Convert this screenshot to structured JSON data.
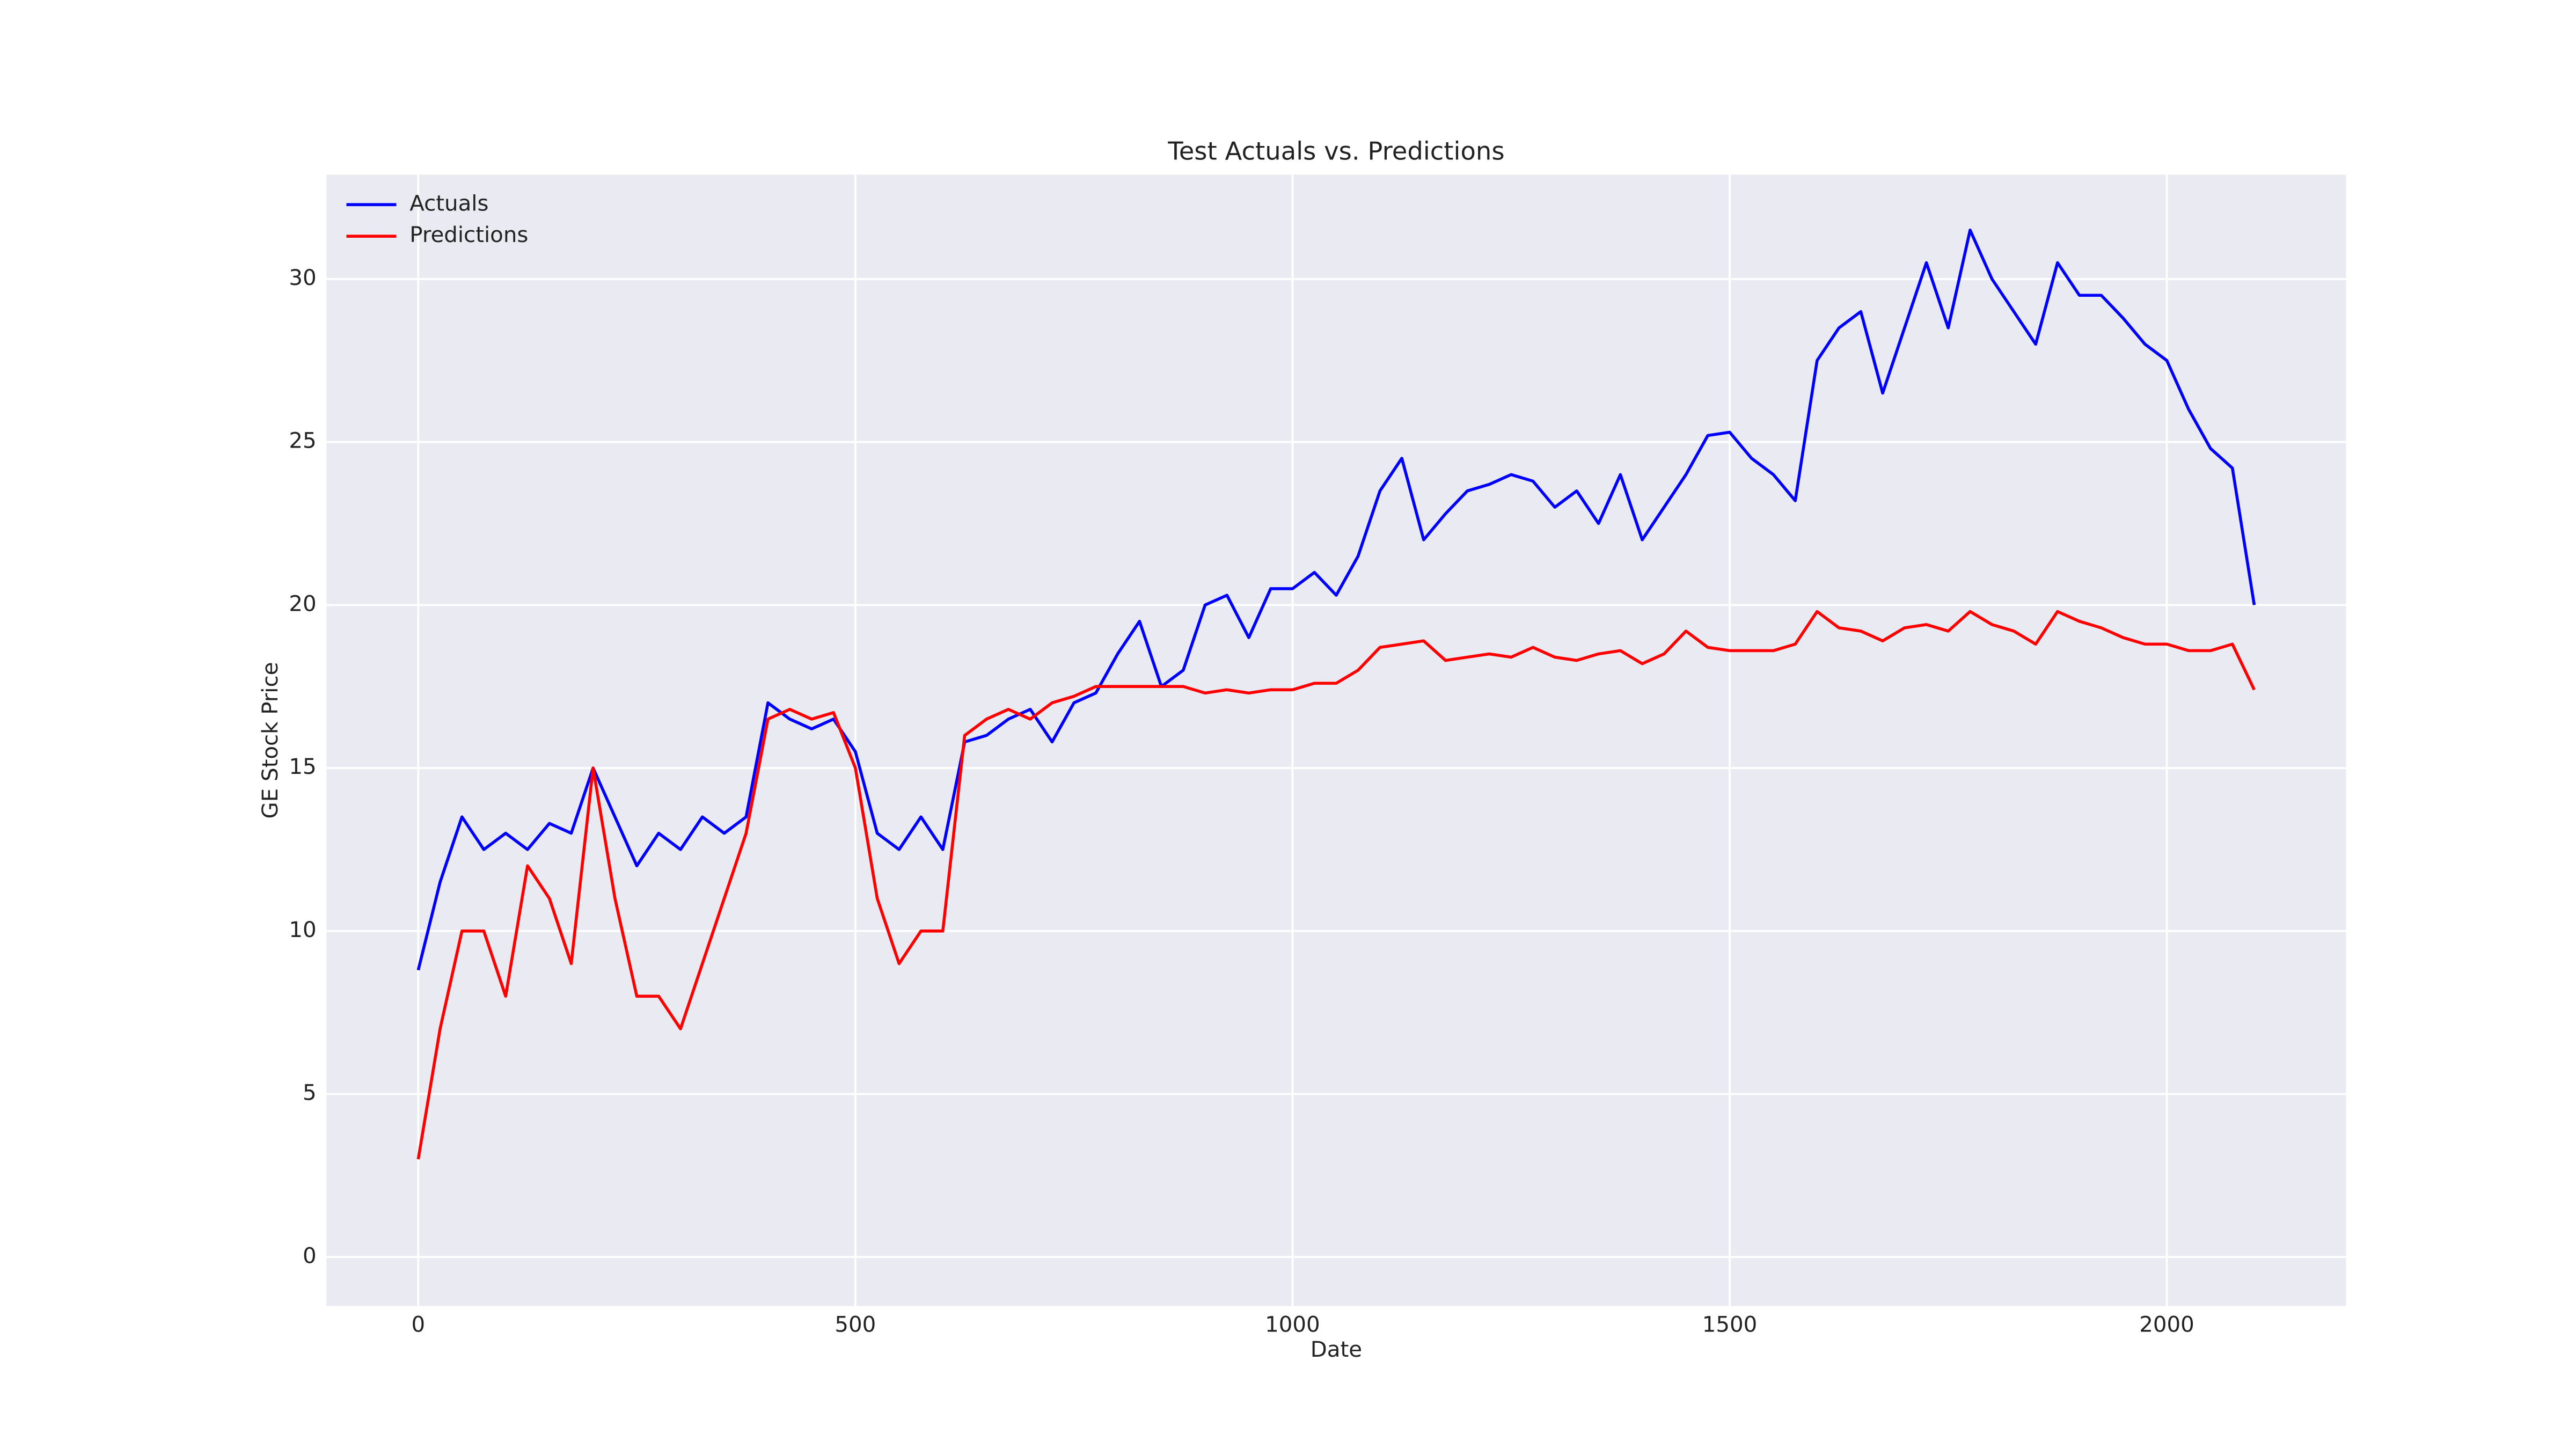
{
  "chart_data": {
    "type": "line",
    "title": "Test Actuals vs. Predictions",
    "x_label": "Date",
    "y_label": "GE Stock Price",
    "x": [
      0,
      25,
      50,
      75,
      100,
      125,
      150,
      175,
      200,
      225,
      250,
      275,
      300,
      325,
      350,
      375,
      400,
      425,
      450,
      475,
      500,
      525,
      550,
      575,
      600,
      625,
      650,
      675,
      700,
      725,
      750,
      775,
      800,
      825,
      850,
      875,
      900,
      925,
      950,
      975,
      1000,
      1025,
      1050,
      1075,
      1100,
      1125,
      1150,
      1175,
      1200,
      1225,
      1250,
      1275,
      1300,
      1325,
      1350,
      1375,
      1400,
      1425,
      1450,
      1475,
      1500,
      1525,
      1550,
      1575,
      1600,
      1625,
      1650,
      1675,
      1700,
      1725,
      1750,
      1775,
      1800,
      1825,
      1850,
      1875,
      1900,
      1925,
      1950,
      1975,
      2000,
      2025,
      2050,
      2075,
      2100
    ],
    "series": [
      {
        "name": "Actuals",
        "color": "#0000ff",
        "values": [
          8.8,
          11.5,
          13.5,
          12.5,
          13,
          12.5,
          13.3,
          13,
          15,
          13.5,
          12,
          13,
          12.5,
          13.5,
          13,
          13.5,
          17,
          16.5,
          16.2,
          16.5,
          15.5,
          13,
          12.5,
          13.5,
          12.5,
          15.8,
          16,
          16.5,
          16.8,
          15.8,
          17,
          17.3,
          18.5,
          19.5,
          17.5,
          18,
          20,
          20.3,
          19,
          20.5,
          20.5,
          21,
          20.3,
          21.5,
          23.5,
          24.5,
          22,
          22.8,
          23.5,
          23.7,
          24,
          23.8,
          23,
          23.5,
          22.5,
          24,
          22,
          23,
          24,
          25.2,
          25.3,
          24.5,
          24,
          23.2,
          27.5,
          28.5,
          29,
          26.5,
          28.5,
          30.5,
          28.5,
          31.5,
          30,
          29,
          28,
          30.5,
          29.5,
          29.5,
          28.8,
          28,
          27.5,
          26,
          24.8,
          24.2,
          20
        ]
      },
      {
        "name": "Predictions",
        "color": "#ff0000",
        "values": [
          3,
          7,
          10,
          10,
          8,
          12,
          11,
          9,
          15,
          11,
          8,
          8,
          7,
          9,
          11,
          13,
          16.5,
          16.8,
          16.5,
          16.7,
          15,
          11,
          9,
          10,
          10,
          16,
          16.5,
          16.8,
          16.5,
          17,
          17.2,
          17.5,
          17.5,
          17.5,
          17.5,
          17.5,
          17.3,
          17.4,
          17.3,
          17.4,
          17.4,
          17.6,
          17.6,
          18,
          18.7,
          18.8,
          18.9,
          18.3,
          18.4,
          18.5,
          18.4,
          18.7,
          18.4,
          18.3,
          18.5,
          18.6,
          18.2,
          18.5,
          19.2,
          18.7,
          18.6,
          18.6,
          18.6,
          18.8,
          19.8,
          19.3,
          19.2,
          18.9,
          19.3,
          19.4,
          19.2,
          19.8,
          19.4,
          19.2,
          18.8,
          19.8,
          19.5,
          19.3,
          19,
          18.8,
          18.8,
          18.6,
          18.6,
          18.8,
          17.4
        ]
      }
    ],
    "xlim": [
      -105,
      2205
    ],
    "ylim": [
      -1.5,
      33.2
    ],
    "xticks": [
      0,
      500,
      1000,
      1500,
      2000
    ],
    "yticks": [
      0,
      5,
      10,
      15,
      20,
      25,
      30
    ],
    "grid": true,
    "legend": "upper left"
  }
}
